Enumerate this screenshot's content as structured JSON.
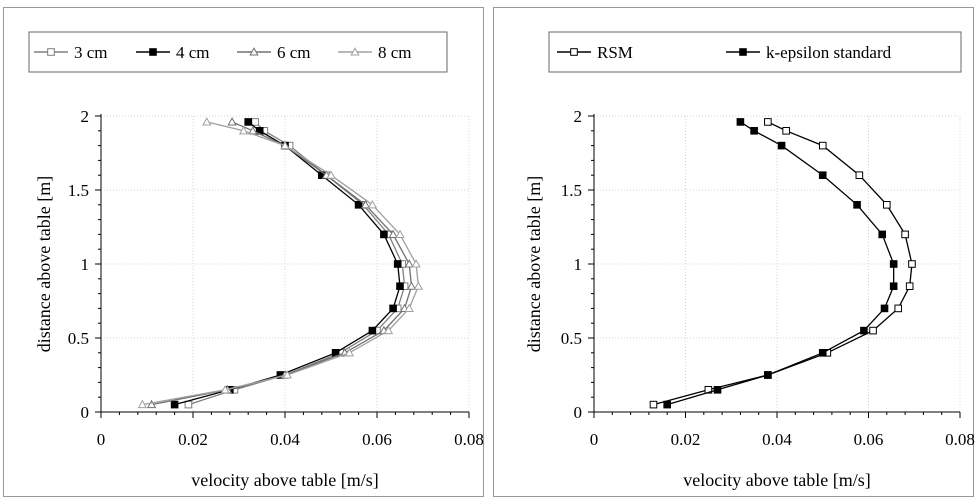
{
  "chart_data": [
    {
      "type": "line",
      "xlabel": "velocity above table [m/s]",
      "ylabel": "distance above table [m]",
      "xlim": [
        0,
        0.08
      ],
      "ylim": [
        0,
        2
      ],
      "xticks": [
        0,
        0.02,
        0.04,
        0.06,
        0.08
      ],
      "xtick_labels": [
        "0",
        "0.02",
        "0.04",
        "0.06",
        "0.08"
      ],
      "yticks": [
        0,
        0.5,
        1,
        1.5,
        2
      ],
      "ytick_labels": [
        "0",
        "0.5",
        "1",
        "1.5",
        "2"
      ],
      "grid": true,
      "legend_position": "top",
      "series": [
        {
          "name": "3 cm",
          "marker": "square-open",
          "color": "#808080",
          "x": [
            0.019,
            0.029,
            0.04,
            0.052,
            0.06,
            0.0645,
            0.066,
            0.0655,
            0.0625,
            0.057,
            0.049,
            0.041,
            0.0355,
            0.0335
          ],
          "y": [
            0.05,
            0.15,
            0.25,
            0.4,
            0.55,
            0.7,
            0.85,
            1.0,
            1.2,
            1.4,
            1.6,
            1.8,
            1.9,
            1.96
          ]
        },
        {
          "name": "4 cm",
          "marker": "square-filled",
          "color": "#000000",
          "x": [
            0.016,
            0.028,
            0.039,
            0.051,
            0.059,
            0.0635,
            0.065,
            0.0645,
            0.0615,
            0.056,
            0.048,
            0.04,
            0.0345,
            0.032
          ],
          "y": [
            0.05,
            0.15,
            0.25,
            0.4,
            0.55,
            0.7,
            0.85,
            1.0,
            1.2,
            1.4,
            1.6,
            1.8,
            1.9,
            1.96
          ]
        },
        {
          "name": "6 cm",
          "marker": "triangle-open",
          "color": "#707070",
          "x": [
            0.011,
            0.0275,
            0.04,
            0.053,
            0.0615,
            0.066,
            0.0675,
            0.067,
            0.0635,
            0.0575,
            0.049,
            0.04,
            0.033,
            0.0285
          ],
          "y": [
            0.05,
            0.15,
            0.25,
            0.4,
            0.55,
            0.7,
            0.85,
            1.0,
            1.2,
            1.4,
            1.6,
            1.8,
            1.9,
            1.96
          ]
        },
        {
          "name": "8 cm",
          "marker": "triangle-open",
          "color": "#a0a0a0",
          "x": [
            0.009,
            0.027,
            0.0405,
            0.054,
            0.0625,
            0.067,
            0.069,
            0.0685,
            0.065,
            0.059,
            0.05,
            0.04,
            0.031,
            0.023
          ],
          "y": [
            0.05,
            0.15,
            0.25,
            0.4,
            0.55,
            0.7,
            0.85,
            1.0,
            1.2,
            1.4,
            1.6,
            1.8,
            1.9,
            1.96
          ]
        }
      ]
    },
    {
      "type": "line",
      "xlabel": "velocity above table [m/s]",
      "ylabel": "distance above table [m]",
      "xlim": [
        0,
        0.08
      ],
      "ylim": [
        0,
        2
      ],
      "xticks": [
        0,
        0.02,
        0.04,
        0.06,
        0.08
      ],
      "xtick_labels": [
        "0",
        "0.02",
        "0.04",
        "0.06",
        "0.08"
      ],
      "yticks": [
        0,
        0.5,
        1,
        1.5,
        2
      ],
      "ytick_labels": [
        "0",
        "0.5",
        "1",
        "1.5",
        "2"
      ],
      "grid": true,
      "legend_position": "top",
      "series": [
        {
          "name": "RSM",
          "marker": "square-open",
          "color": "#000000",
          "x": [
            0.013,
            0.025,
            0.038,
            0.051,
            0.061,
            0.0665,
            0.069,
            0.0695,
            0.068,
            0.064,
            0.058,
            0.05,
            0.042,
            0.038
          ],
          "y": [
            0.05,
            0.15,
            0.25,
            0.4,
            0.55,
            0.7,
            0.85,
            1.0,
            1.2,
            1.4,
            1.6,
            1.8,
            1.9,
            1.96
          ]
        },
        {
          "name": "k-epsilon standard",
          "marker": "square-filled",
          "color": "#000000",
          "x": [
            0.016,
            0.027,
            0.038,
            0.05,
            0.059,
            0.0635,
            0.0655,
            0.0655,
            0.063,
            0.0575,
            0.05,
            0.041,
            0.035,
            0.032
          ],
          "y": [
            0.05,
            0.15,
            0.25,
            0.4,
            0.55,
            0.7,
            0.85,
            1.0,
            1.2,
            1.4,
            1.6,
            1.8,
            1.9,
            1.96
          ]
        }
      ]
    }
  ]
}
